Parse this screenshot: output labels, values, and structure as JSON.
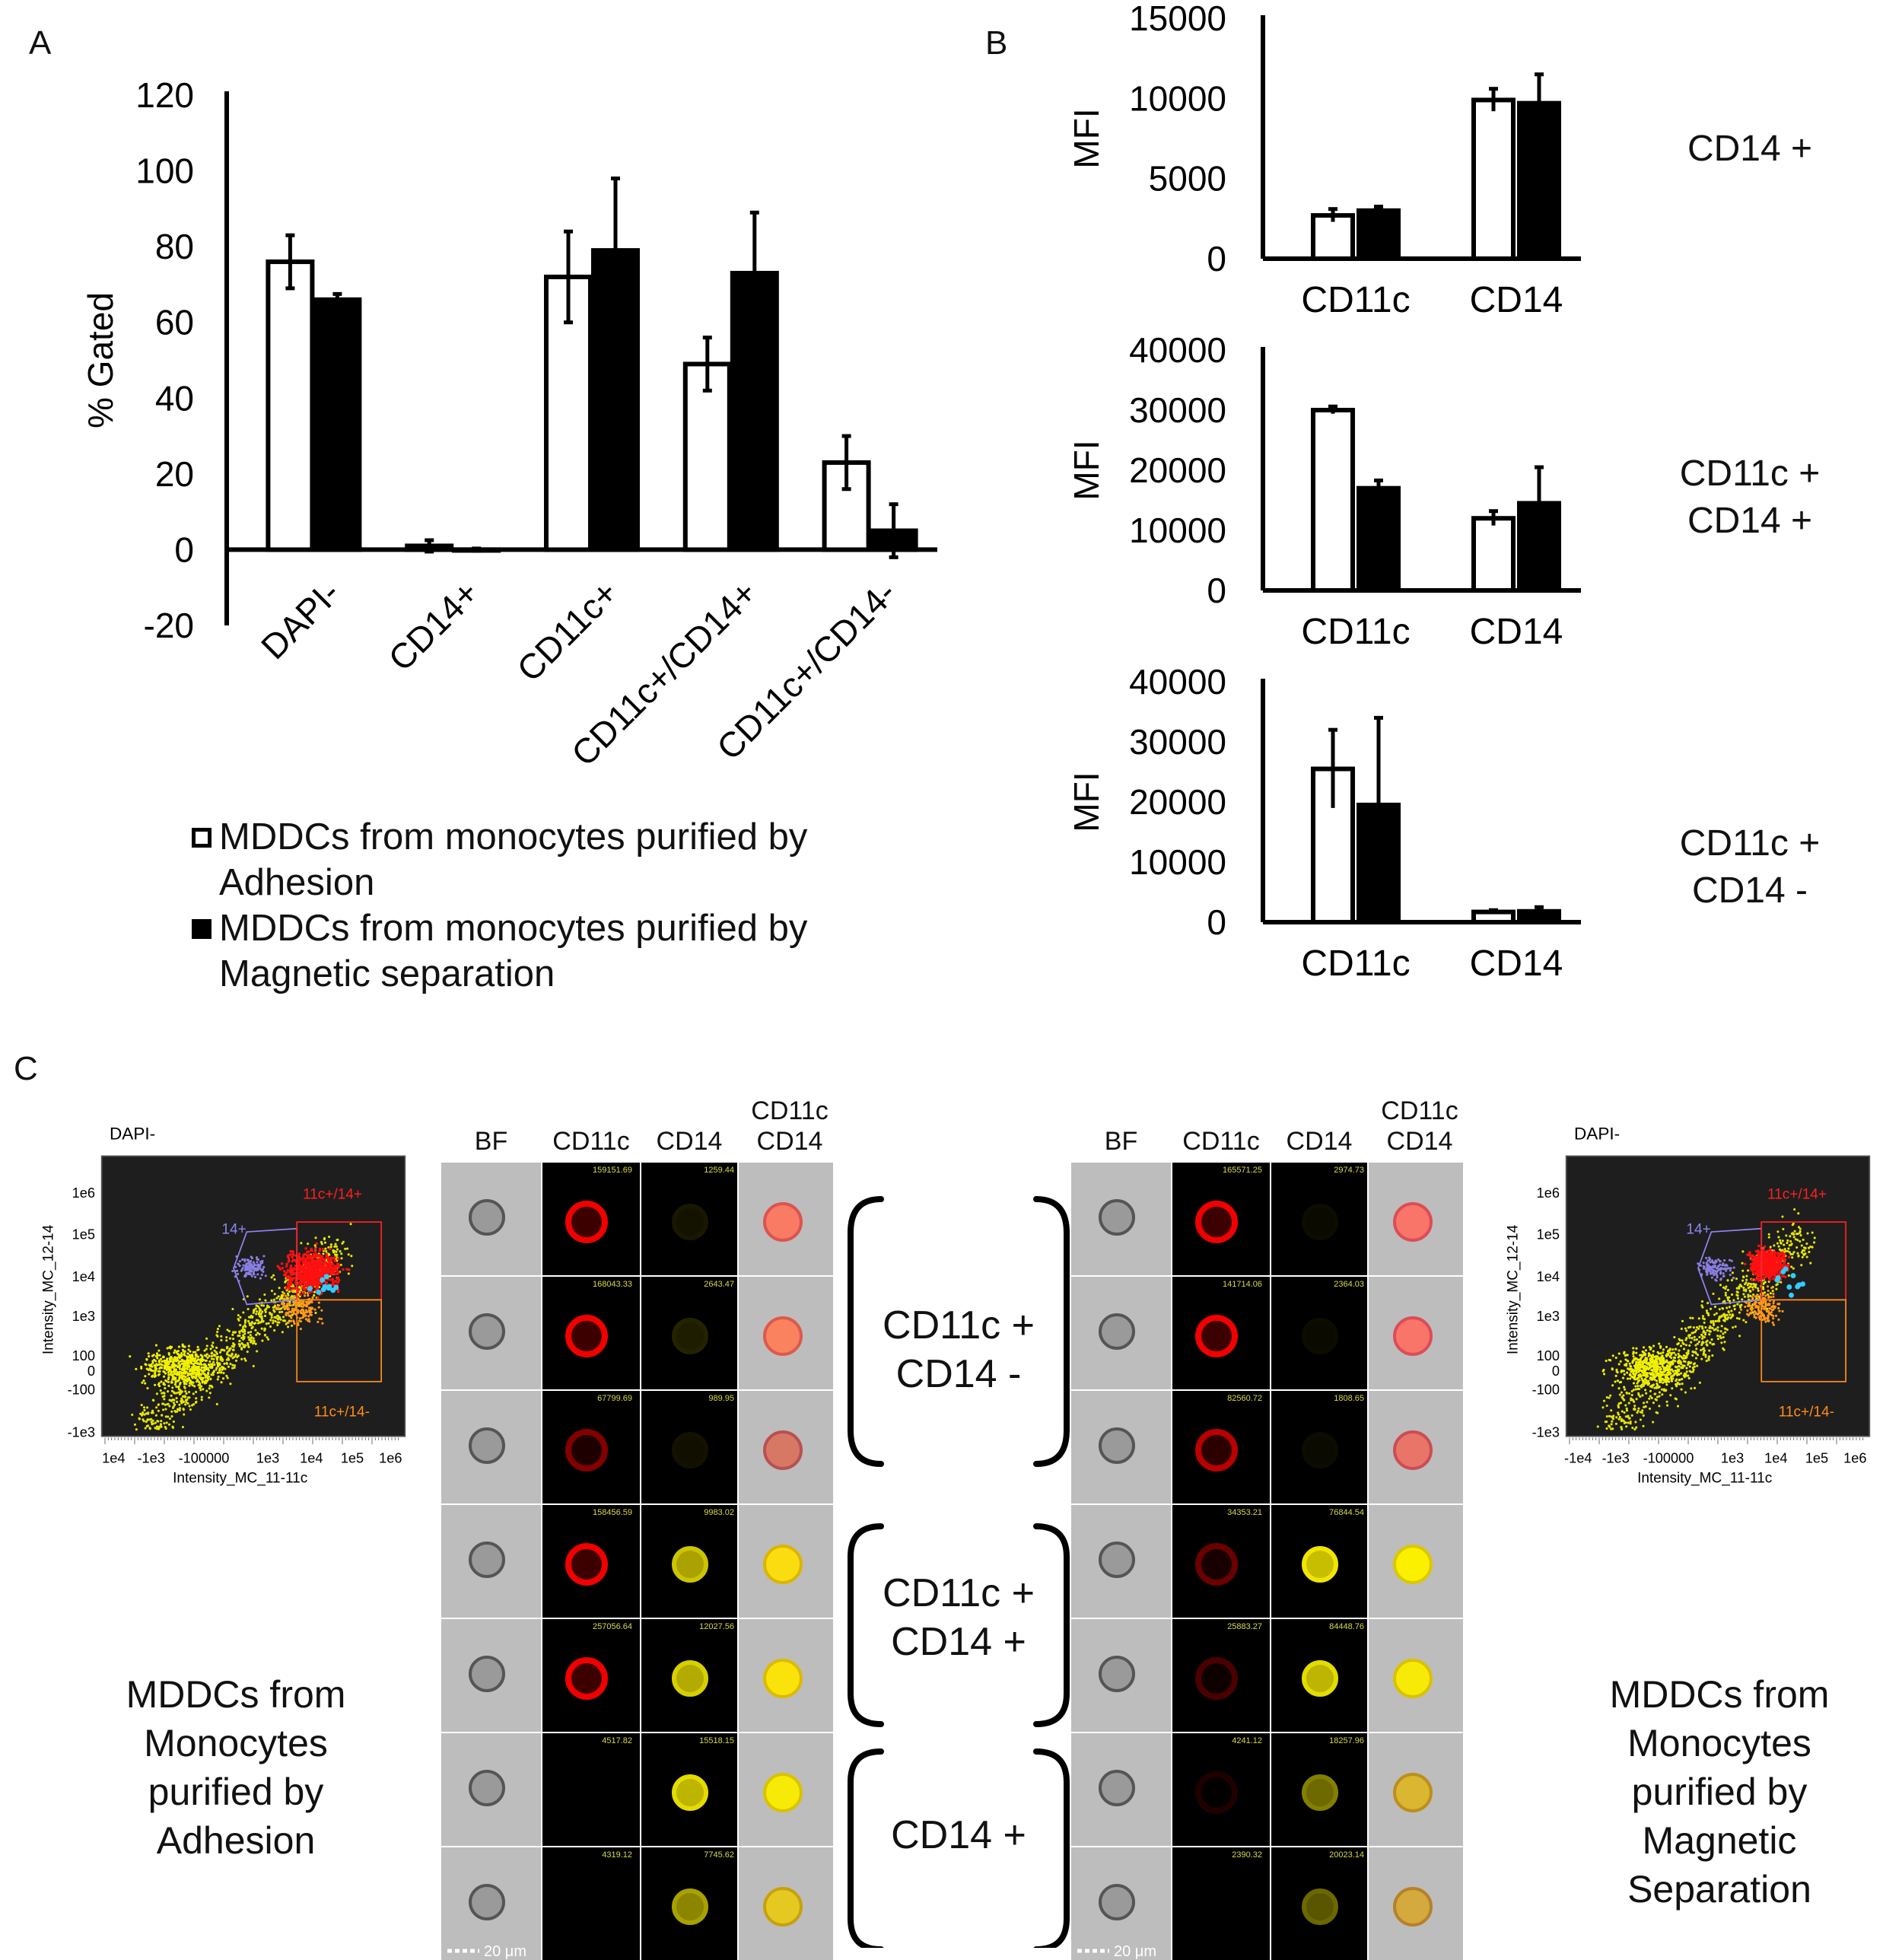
{
  "panels": {
    "a": "A",
    "b": "B",
    "c": "C"
  },
  "chart_data": [
    {
      "type": "bar",
      "ylabel": "% Gated",
      "ylim": [
        -20,
        120
      ],
      "yticks": [
        "-20",
        "0",
        "20",
        "40",
        "60",
        "80",
        "100",
        "120"
      ],
      "categories": [
        "DAPI-",
        "CD14+",
        "CD11c+",
        "CD11c+/CD14+",
        "CD11c+/CD14-"
      ],
      "series": [
        {
          "name": "MDDCs from monocytes purified by Adhesion",
          "fill": "open",
          "values": [
            76,
            1,
            72,
            49,
            23
          ],
          "errors": [
            7,
            1.5,
            12,
            7,
            7
          ]
        },
        {
          "name": "MDDCs from monocytes purified by Magnetic separation",
          "fill": "solid",
          "values": [
            66,
            0,
            79,
            73,
            5
          ],
          "errors": [
            1.5,
            0.3,
            19,
            16,
            7
          ]
        }
      ]
    },
    {
      "type": "bar",
      "ylabel": "MFI",
      "row_label": [
        "CD14 +"
      ],
      "ylim": [
        0,
        15000
      ],
      "yticks": [
        "0",
        "5000",
        "10000",
        "15000"
      ],
      "categories": [
        "CD11c",
        "CD14"
      ],
      "series": [
        {
          "name": "Adhesion",
          "fill": "open",
          "values": [
            2700,
            9900
          ],
          "errors": [
            400,
            700
          ]
        },
        {
          "name": "Magnetic separation",
          "fill": "solid",
          "values": [
            3000,
            9700
          ],
          "errors": [
            250,
            1800
          ]
        }
      ]
    },
    {
      "type": "bar",
      "ylabel": "MFI",
      "row_label": [
        "CD11c +",
        "CD14 +"
      ],
      "ylim": [
        0,
        40000
      ],
      "yticks": [
        "0",
        "10000",
        "20000",
        "30000",
        "40000"
      ],
      "categories": [
        "CD11c",
        "CD14"
      ],
      "series": [
        {
          "name": "Adhesion",
          "fill": "open",
          "values": [
            30000,
            12000
          ],
          "errors": [
            600,
            1200
          ]
        },
        {
          "name": "Magnetic separation",
          "fill": "solid",
          "values": [
            17000,
            14500
          ],
          "errors": [
            1300,
            6000
          ]
        }
      ]
    },
    {
      "type": "bar",
      "ylabel": "MFI",
      "row_label": [
        "CD11c +",
        "CD14 -"
      ],
      "ylim": [
        0,
        40000
      ],
      "yticks": [
        "0",
        "10000",
        "20000",
        "30000",
        "40000"
      ],
      "categories": [
        "CD11c",
        "CD14"
      ],
      "series": [
        {
          "name": "Adhesion",
          "fill": "open",
          "values": [
            25500,
            1700
          ],
          "errors": [
            6500,
            300
          ]
        },
        {
          "name": "Magnetic separation",
          "fill": "solid",
          "values": [
            19500,
            1800
          ],
          "errors": [
            14500,
            700
          ]
        }
      ]
    }
  ],
  "legend": [
    {
      "fill": "open",
      "line1": "MDDCs from monocytes purified by",
      "line2": "Adhesion"
    },
    {
      "fill": "solid",
      "line1": "MDDCs from monocytes purified by",
      "line2": "Magnetic separation"
    }
  ],
  "panel_c": {
    "facs_left": {
      "title": "DAPI-",
      "xlabel": "Intensity_MC_11-11c",
      "ylabel": "Intensity_MC_12-14",
      "xticks": [
        "1e4",
        "-1e3",
        "-1000",
        "100",
        "1e3",
        "1e4",
        "1e5",
        "1e6"
      ],
      "yticks": [
        "1e6",
        "1e5",
        "1e4",
        "1e3",
        "100",
        "0",
        "-100",
        "-1e3"
      ],
      "gates": {
        "g14": "14+",
        "g11_14": "11c+/14+",
        "g11_n14": "11c+/14-"
      }
    },
    "facs_right": {
      "title": "DAPI-",
      "xlabel": "Intensity_MC_11-11c",
      "ylabel": "Intensity_MC_12-14",
      "xticks": [
        "-1e4",
        "-1e3",
        "-1000",
        "100",
        "1e3",
        "1e4",
        "1e5",
        "1e6"
      ],
      "yticks": [
        "1e6",
        "1e5",
        "1e4",
        "1e3",
        "100",
        "0",
        "-100",
        "-1e3"
      ],
      "gates": {
        "g14": "14+",
        "g11_14": "11c+/14+",
        "g11_n14": "11c+/14-"
      }
    },
    "column_headers": {
      "bf": "BF",
      "cd11c": "CD11c",
      "cd14": "CD14",
      "merge_1": "CD11c",
      "merge_2": "CD14"
    },
    "left_values": [
      [
        "159151.69",
        "1259.44"
      ],
      [
        "168043.33",
        "2643.47"
      ],
      [
        "67799.69",
        "989.95"
      ],
      [
        "158456.59",
        "9983.02"
      ],
      [
        "257056.64",
        "12027.56"
      ],
      [
        "4517.82",
        "15518.15"
      ],
      [
        "4319.12",
        "7745.62"
      ]
    ],
    "right_values": [
      [
        "165571.25",
        "2974.73"
      ],
      [
        "141714.06",
        "2364.03"
      ],
      [
        "82560.72",
        "1808.65"
      ],
      [
        "34353.21",
        "76844.54"
      ],
      [
        "25883.27",
        "84448.76"
      ],
      [
        "4241.12",
        "18257.96"
      ],
      [
        "2390.32",
        "20023.14"
      ]
    ],
    "scale_bar": "20 μm",
    "brackets": [
      [
        "CD11c +",
        "CD14 -"
      ],
      [
        "CD11c +",
        "CD14 +"
      ],
      [
        "CD14 +"
      ]
    ],
    "caption_left": [
      "MDDCs from",
      "Monocytes",
      "purified by",
      "Adhesion"
    ],
    "caption_right": [
      "MDDCs from",
      "Monocytes",
      "purified by",
      "Magnetic",
      "Separation"
    ]
  }
}
